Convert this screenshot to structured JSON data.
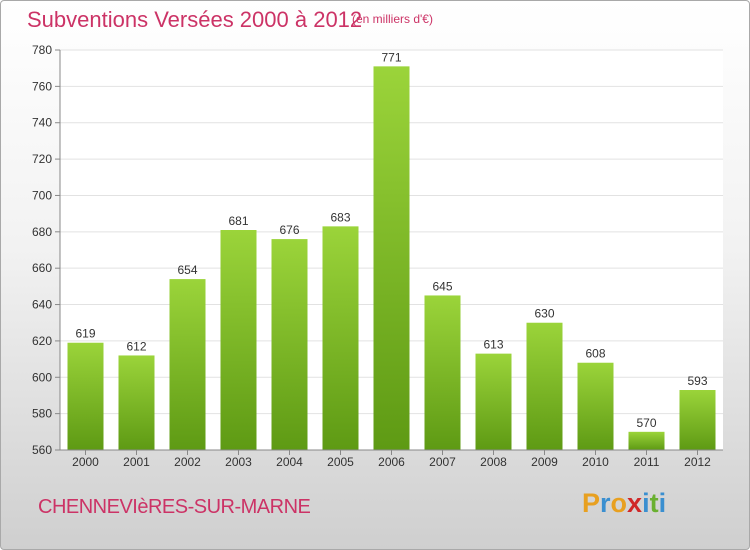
{
  "header": {
    "title": "Subventions Versées 2000 à 2012",
    "subtitle": "(en milliers d'€)"
  },
  "footer": {
    "commune": "CHENNEVIèRES-SUR-MARNE",
    "logo_letters": [
      "P",
      "r",
      "o",
      "x",
      "i",
      "t",
      "i"
    ],
    "logo_colors": [
      "#e8a020",
      "#3a8fd0",
      "#e8a020",
      "#d02828",
      "#3a8fd0",
      "#6ab030",
      "#3a8fd0"
    ]
  },
  "colors": {
    "bar_light": "#9bd43a",
    "bar_dark": "#5e9a14",
    "title": "#cc3366"
  },
  "chart_data": {
    "type": "bar",
    "title": "Subventions Versées 2000 à 2012",
    "subtitle": "(en milliers d'€)",
    "xlabel": "",
    "ylabel": "",
    "categories": [
      "2000",
      "2001",
      "2002",
      "2003",
      "2004",
      "2005",
      "2006",
      "2007",
      "2008",
      "2009",
      "2010",
      "2011",
      "2012"
    ],
    "values": [
      619,
      612,
      654,
      681,
      676,
      683,
      771,
      645,
      613,
      630,
      608,
      570,
      593
    ],
    "ylim": [
      560,
      780
    ],
    "yticks": [
      560,
      580,
      600,
      620,
      640,
      660,
      680,
      700,
      720,
      740,
      760,
      780
    ],
    "grid": true,
    "legend": "none"
  }
}
